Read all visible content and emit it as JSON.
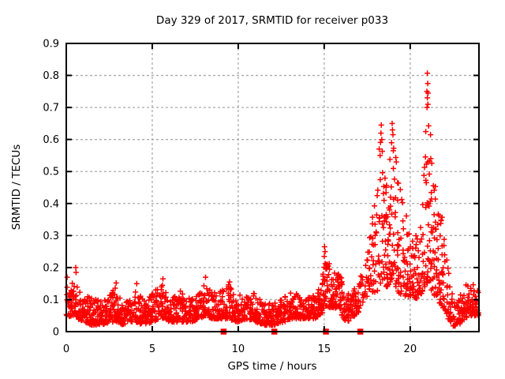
{
  "window": {
    "background": "#ffffff"
  },
  "chart_data": {
    "type": "scatter",
    "title": "Day 329 of 2017, SRMTID for receiver p033",
    "xlabel": "GPS time / hours",
    "ylabel": "SRMTID / TECUs",
    "xlim": [
      0,
      24
    ],
    "ylim": [
      0,
      0.9
    ],
    "grid": true,
    "grid_style": {
      "color": "#aaaaaa",
      "dash": "3,3"
    },
    "border_color": "#000000",
    "xticks": [
      {
        "value": 0,
        "label": "0"
      },
      {
        "value": 5,
        "label": "5"
      },
      {
        "value": 10,
        "label": "10"
      },
      {
        "value": 15,
        "label": "15"
      },
      {
        "value": 20,
        "label": "20"
      }
    ],
    "yticks": [
      {
        "value": 0.0,
        "label": "0"
      },
      {
        "value": 0.1,
        "label": "0.1"
      },
      {
        "value": 0.2,
        "label": "0.2"
      },
      {
        "value": 0.3,
        "label": "0.3"
      },
      {
        "value": 0.4,
        "label": "0.4"
      },
      {
        "value": 0.5,
        "label": "0.5"
      },
      {
        "value": 0.6,
        "label": "0.6"
      },
      {
        "value": 0.7,
        "label": "0.7"
      },
      {
        "value": 0.8,
        "label": "0.8"
      },
      {
        "value": 0.9,
        "label": "0.9"
      }
    ],
    "series": [
      {
        "name": "srmtid-points",
        "marker": "plus",
        "color": "#ff0000",
        "seed": 987654321,
        "bin_hours": 0.1,
        "x_start": 0.0,
        "x_end": 23.93,
        "envelope": [
          [
            0.0,
            0.05,
            0.16,
            8
          ],
          [
            0.2,
            0.04,
            0.12,
            8
          ],
          [
            0.5,
            0.06,
            0.19,
            8
          ],
          [
            0.7,
            0.04,
            0.14,
            8
          ],
          [
            1.0,
            0.03,
            0.1,
            8
          ],
          [
            1.5,
            0.02,
            0.12,
            8
          ],
          [
            2.0,
            0.02,
            0.09,
            8
          ],
          [
            2.5,
            0.03,
            0.12,
            8
          ],
          [
            2.9,
            0.03,
            0.14,
            8
          ],
          [
            3.3,
            0.02,
            0.09,
            8
          ],
          [
            3.7,
            0.03,
            0.1,
            8
          ],
          [
            4.1,
            0.03,
            0.14,
            8
          ],
          [
            4.5,
            0.02,
            0.1,
            8
          ],
          [
            5.0,
            0.03,
            0.12,
            8
          ],
          [
            5.6,
            0.04,
            0.15,
            8
          ],
          [
            6.0,
            0.03,
            0.1,
            8
          ],
          [
            6.5,
            0.03,
            0.13,
            8
          ],
          [
            6.9,
            0.03,
            0.13,
            8
          ],
          [
            7.3,
            0.03,
            0.1,
            8
          ],
          [
            7.7,
            0.04,
            0.12,
            8
          ],
          [
            8.1,
            0.05,
            0.15,
            8
          ],
          [
            8.5,
            0.04,
            0.12,
            8
          ],
          [
            9.0,
            0.04,
            0.13,
            8
          ],
          [
            9.5,
            0.04,
            0.15,
            8
          ],
          [
            9.9,
            0.03,
            0.11,
            8
          ],
          [
            10.5,
            0.04,
            0.13,
            8
          ],
          [
            11.0,
            0.03,
            0.12,
            8
          ],
          [
            11.6,
            0.02,
            0.09,
            8
          ],
          [
            12.1,
            0.02,
            0.09,
            8
          ],
          [
            12.7,
            0.03,
            0.11,
            8
          ],
          [
            13.1,
            0.04,
            0.13,
            8
          ],
          [
            13.8,
            0.04,
            0.11,
            8
          ],
          [
            14.4,
            0.04,
            0.12,
            8
          ],
          [
            14.8,
            0.05,
            0.14,
            8
          ],
          [
            15.0,
            0.08,
            0.25,
            9
          ],
          [
            15.2,
            0.08,
            0.22,
            9
          ],
          [
            15.5,
            0.07,
            0.18,
            8
          ],
          [
            15.9,
            0.08,
            0.21,
            8
          ],
          [
            16.1,
            0.04,
            0.16,
            8
          ],
          [
            16.4,
            0.03,
            0.13,
            8
          ],
          [
            16.8,
            0.05,
            0.16,
            8
          ],
          [
            17.1,
            0.07,
            0.17,
            5
          ],
          [
            17.3,
            0.1,
            0.2,
            3
          ],
          [
            17.6,
            0.12,
            0.28,
            5
          ],
          [
            17.9,
            0.12,
            0.38,
            8
          ],
          [
            18.1,
            0.13,
            0.52,
            9
          ],
          [
            18.3,
            0.15,
            0.62,
            9
          ],
          [
            18.5,
            0.13,
            0.47,
            9
          ],
          [
            18.8,
            0.15,
            0.58,
            10
          ],
          [
            19.0,
            0.17,
            0.62,
            10
          ],
          [
            19.2,
            0.13,
            0.52,
            9
          ],
          [
            19.5,
            0.11,
            0.44,
            9
          ],
          [
            19.9,
            0.11,
            0.34,
            9
          ],
          [
            20.3,
            0.1,
            0.3,
            8
          ],
          [
            20.7,
            0.12,
            0.33,
            8
          ],
          [
            20.95,
            0.15,
            0.7,
            9
          ],
          [
            21.1,
            0.16,
            0.66,
            9
          ],
          [
            21.3,
            0.12,
            0.52,
            9
          ],
          [
            21.6,
            0.1,
            0.44,
            9
          ],
          [
            22.0,
            0.07,
            0.33,
            8
          ],
          [
            22.3,
            0.03,
            0.16,
            8
          ],
          [
            22.6,
            0.015,
            0.1,
            8
          ],
          [
            23.0,
            0.03,
            0.13,
            8
          ],
          [
            23.4,
            0.05,
            0.16,
            8
          ],
          [
            23.93,
            0.05,
            0.14,
            8
          ]
        ],
        "peak_points": [
          [
            21.0,
            0.807
          ],
          [
            21.02,
            0.775
          ],
          [
            20.97,
            0.75
          ],
          [
            21.04,
            0.745
          ],
          [
            21.0,
            0.73
          ],
          [
            21.03,
            0.71
          ],
          [
            20.98,
            0.7
          ],
          [
            18.32,
            0.645
          ],
          [
            18.3,
            0.62
          ],
          [
            18.35,
            0.6
          ],
          [
            18.2,
            0.57
          ],
          [
            18.25,
            0.55
          ],
          [
            18.95,
            0.65
          ],
          [
            18.97,
            0.63
          ],
          [
            19.0,
            0.615
          ],
          [
            18.92,
            0.59
          ],
          [
            19.02,
            0.565
          ],
          [
            15.02,
            0.265
          ],
          [
            15.05,
            0.25
          ],
          [
            15.0,
            0.235
          ],
          [
            0.55,
            0.2
          ],
          [
            0.57,
            0.185
          ],
          [
            0.05,
            0.17
          ],
          [
            8.1,
            0.17
          ],
          [
            5.62,
            0.165
          ],
          [
            2.9,
            0.152
          ],
          [
            4.1,
            0.15
          ],
          [
            9.5,
            0.155
          ]
        ]
      },
      {
        "name": "flag-squares",
        "marker": "filled-square",
        "color": "#ff0000",
        "points": [
          [
            9.15,
            0
          ],
          [
            12.1,
            0
          ],
          [
            15.1,
            0
          ],
          [
            17.1,
            0
          ]
        ]
      }
    ]
  }
}
